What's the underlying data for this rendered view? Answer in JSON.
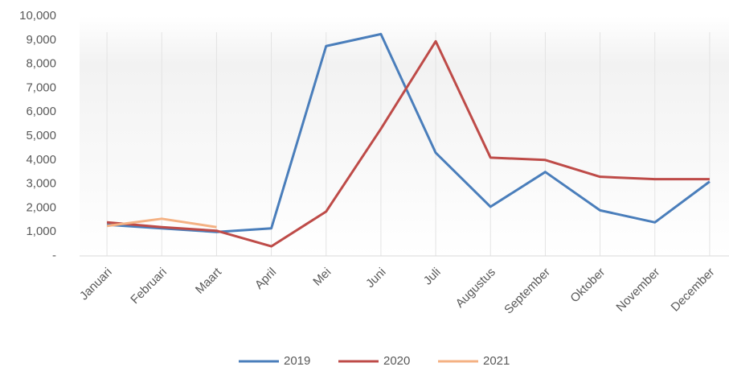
{
  "chart_data": {
    "type": "line",
    "categories": [
      "Januari",
      "Februari",
      "Maart",
      "April",
      "Mei",
      "Juni",
      "Juli",
      "Augustus",
      "September",
      "Oktober",
      "November",
      "December"
    ],
    "series": [
      {
        "name": "2019",
        "color": "#4a7ebb",
        "values": [
          1300,
          1150,
          1000,
          1150,
          8750,
          9250,
          4300,
          2050,
          3500,
          1900,
          1400,
          3100
        ]
      },
      {
        "name": "2020",
        "color": "#be4b48",
        "values": [
          1400,
          1200,
          1050,
          400,
          1850,
          5300,
          8950,
          4100,
          4000,
          3300,
          3200,
          3200
        ]
      },
      {
        "name": "2021",
        "color": "#f4b183",
        "values": [
          1250,
          1550,
          1200,
          null,
          null,
          null,
          null,
          null,
          null,
          null,
          null,
          null
        ]
      }
    ],
    "ylim": [
      0,
      10000
    ],
    "yticks": [
      {
        "value": 0,
        "label": "-"
      },
      {
        "value": 1000,
        "label": "1,000"
      },
      {
        "value": 2000,
        "label": "2,000"
      },
      {
        "value": 3000,
        "label": "3,000"
      },
      {
        "value": 4000,
        "label": "4,000"
      },
      {
        "value": 5000,
        "label": "5,000"
      },
      {
        "value": 6000,
        "label": "6,000"
      },
      {
        "value": 7000,
        "label": "7,000"
      },
      {
        "value": 8000,
        "label": "8,000"
      },
      {
        "value": 9000,
        "label": "9,000"
      },
      {
        "value": 10000,
        "label": "10,000"
      }
    ],
    "grid": true,
    "legend": "bottom"
  }
}
